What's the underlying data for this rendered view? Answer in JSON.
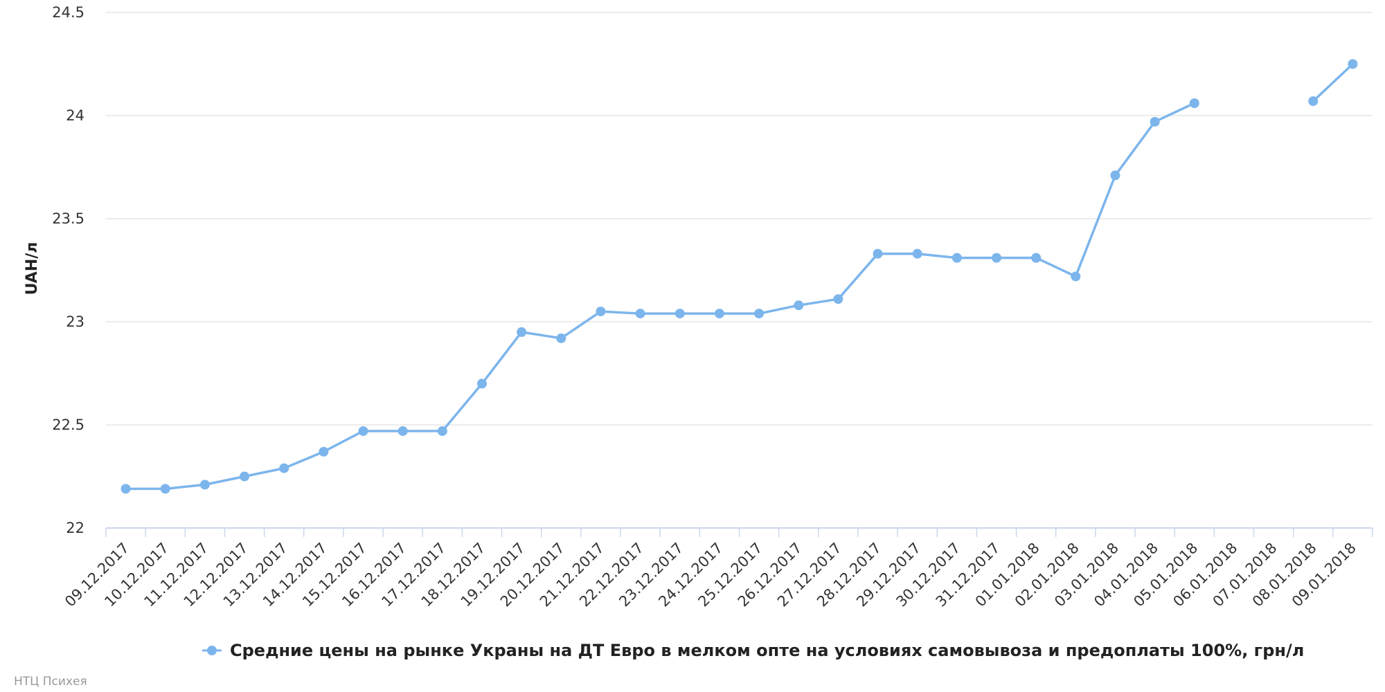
{
  "credit": "НТЦ Психея",
  "colors": {
    "series": "#7cb5ec",
    "grid": "#e6e6e6",
    "axis": "#ccd6eb"
  },
  "chart_data": {
    "type": "line",
    "title": "",
    "xlabel": "",
    "ylabel": "UAH/л",
    "ylim": [
      22,
      24.5
    ],
    "yticks": [
      "22",
      "22.5",
      "23",
      "23.5",
      "24",
      "24.5"
    ],
    "grid": true,
    "legend_position": "bottom-center",
    "categories": [
      "09.12.2017",
      "10.12.2017",
      "11.12.2017",
      "12.12.2017",
      "13.12.2017",
      "14.12.2017",
      "15.12.2017",
      "16.12.2017",
      "17.12.2017",
      "18.12.2017",
      "19.12.2017",
      "20.12.2017",
      "21.12.2017",
      "22.12.2017",
      "23.12.2017",
      "24.12.2017",
      "25.12.2017",
      "26.12.2017",
      "27.12.2017",
      "28.12.2017",
      "29.12.2017",
      "30.12.2017",
      "31.12.2017",
      "01.01.2018",
      "02.01.2018",
      "03.01.2018",
      "04.01.2018",
      "05.01.2018",
      "06.01.2018",
      "07.01.2018",
      "08.01.2018",
      "09.01.2018"
    ],
    "series": [
      {
        "name": "Средние цены на рынке Украны на ДТ Евро в мелком опте на условиях самовывоза и предоплаты 100%, грн/л",
        "values": [
          22.19,
          22.19,
          22.21,
          22.25,
          22.29,
          22.37,
          22.47,
          22.47,
          22.47,
          22.7,
          22.95,
          22.92,
          23.05,
          23.04,
          23.04,
          23.04,
          23.04,
          23.08,
          23.11,
          23.33,
          23.33,
          23.31,
          23.31,
          23.31,
          23.22,
          23.71,
          23.97,
          24.06,
          null,
          null,
          24.07,
          24.25
        ]
      }
    ]
  }
}
